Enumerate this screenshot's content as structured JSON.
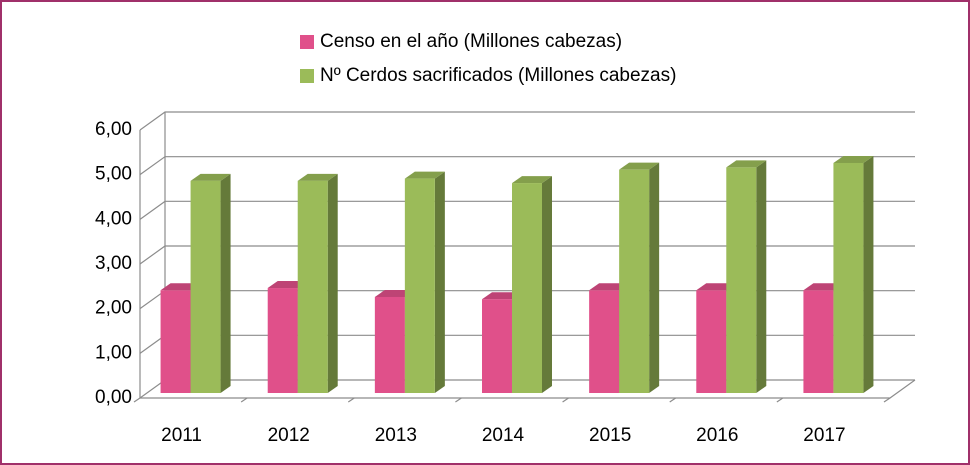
{
  "chart_data": {
    "type": "bar3d",
    "categories": [
      "2011",
      "2012",
      "2013",
      "2014",
      "2015",
      "2016",
      "2017"
    ],
    "series": [
      {
        "name": "Censo en el año (Millones cabezas)",
        "color": "#e0508a",
        "values": [
          2.3,
          2.35,
          2.15,
          2.1,
          2.3,
          2.3,
          2.3
        ]
      },
      {
        "name": "Nº Cerdos sacrificados (Millones cabezas)",
        "color": "#9bbb59",
        "values": [
          4.75,
          4.75,
          4.8,
          4.7,
          5.0,
          5.05,
          5.15
        ]
      }
    ],
    "ylim": [
      0,
      6
    ],
    "yticks": [
      {
        "value": 0,
        "label": "0,00"
      },
      {
        "value": 1,
        "label": "1,00"
      },
      {
        "value": 2,
        "label": "2,00"
      },
      {
        "value": 3,
        "label": "3,00"
      },
      {
        "value": 4,
        "label": "4,00"
      },
      {
        "value": 5,
        "label": "5,00"
      },
      {
        "value": 6,
        "label": "6,00"
      }
    ],
    "grid": true,
    "legend": "top"
  }
}
